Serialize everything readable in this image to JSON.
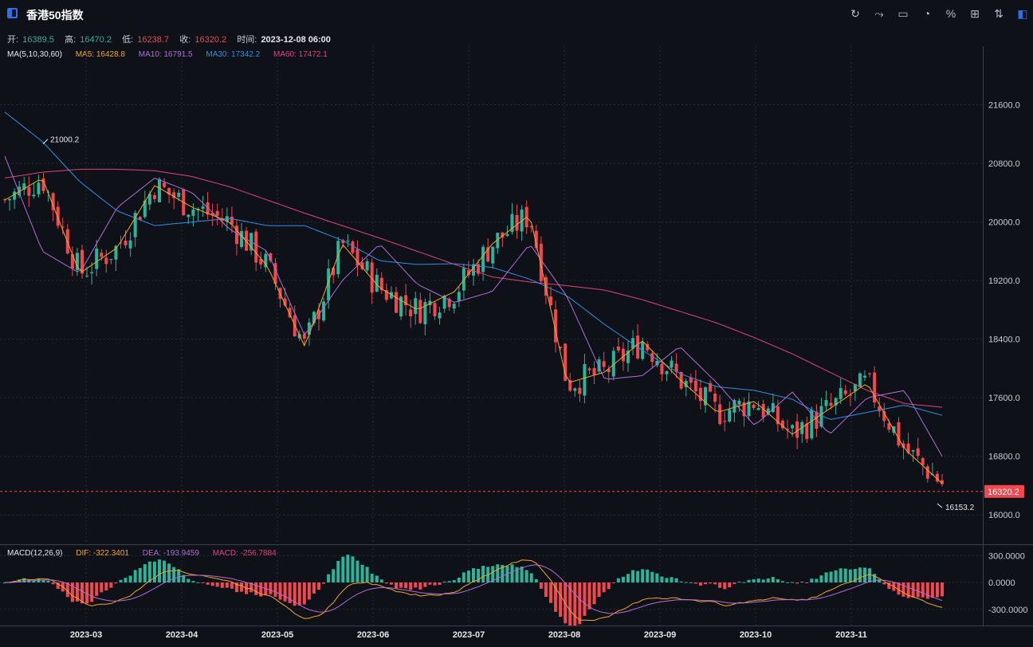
{
  "header": {
    "title": "香港50指数",
    "tools": [
      "refresh-icon",
      "indicator-icon",
      "chart-type-icon",
      "pie-icon",
      "percent-icon",
      "grid-icon",
      "sort-icon",
      "panel-icon"
    ]
  },
  "ohlc": {
    "open_label": "开:",
    "open": "16389.5",
    "high_label": "高:",
    "high": "16470.2",
    "low_label": "低:",
    "low": "16238.7",
    "close_label": "收:",
    "close": "16320.2",
    "time_label": "时间:",
    "time": "2023-12-08 06:00"
  },
  "ma_legend": {
    "title": "MA(5,10,30,60)",
    "ma5": "MA5: 16428.8",
    "ma10": "MA10: 16791.5",
    "ma30": "MA30: 17342.2",
    "ma60": "MA60: 17472.1"
  },
  "macd_legend": {
    "title": "MACD(12,26,9)",
    "dif": "DIF: -322.3401",
    "dea": "DEA: -193.9459",
    "macd": "MACD: -256.7884"
  },
  "colors": {
    "up": "#2db39a",
    "down": "#f2474f",
    "ma5": "#f5a623",
    "ma10": "#b06fd6",
    "ma30": "#2f8fe6",
    "ma60": "#e0457b",
    "grid": "#262a33",
    "bg": "#0f1118"
  },
  "chart_data": {
    "type": "candlestick",
    "price_axis": {
      "ticks": [
        "21600.0",
        "20800.0",
        "20000.0",
        "19200.0",
        "18400.0",
        "17600.0",
        "16800.0",
        "16000.0"
      ],
      "ylim": [
        15600,
        22400
      ]
    },
    "macd_axis": {
      "ticks": [
        "300.0000",
        "0.0000",
        "-300.0000"
      ],
      "ylim": [
        -480,
        400
      ]
    },
    "x_ticks": [
      "2023-03",
      "2023-04",
      "2023-05",
      "2023-06",
      "2023-07",
      "2023-08",
      "2023-09",
      "2023-10",
      "2023-11"
    ],
    "last_price": "16320.2",
    "max_annotation": "21000.2",
    "min_annotation": "16153.2",
    "ma60": [
      20600,
      20680,
      20720,
      20720,
      20700,
      20620,
      20480,
      20300,
      20120,
      19950,
      19780,
      19600,
      19420,
      19250,
      19180,
      19130,
      19070,
      18940,
      18780,
      18620,
      18420,
      18200,
      17950,
      17700,
      17520,
      17470
    ],
    "ma30": [
      21500,
      21100,
      20550,
      20150,
      19950,
      20000,
      20050,
      19950,
      19950,
      19750,
      19470,
      19420,
      19430,
      19380,
      19220,
      18990,
      18600,
      18250,
      17930,
      17750,
      17700,
      17580,
      17300,
      17400,
      17500,
      17360
    ],
    "ma10": [
      20900,
      19600,
      19300,
      20200,
      20600,
      20400,
      19900,
      19600,
      18450,
      19200,
      19700,
      19150,
      18900,
      19050,
      19700,
      18980,
      17850,
      17900,
      18300,
      17800,
      17220,
      17680,
      17100,
      17600,
      17700,
      16800
    ],
    "ma5": [
      20300,
      20600,
      19300,
      19650,
      20500,
      20200,
      20000,
      19400,
      18300,
      19700,
      19100,
      18800,
      19050,
      19700,
      20100,
      17800,
      17950,
      18380,
      17850,
      17400,
      17550,
      17100,
      17450,
      17800,
      16900,
      16430
    ]
  }
}
